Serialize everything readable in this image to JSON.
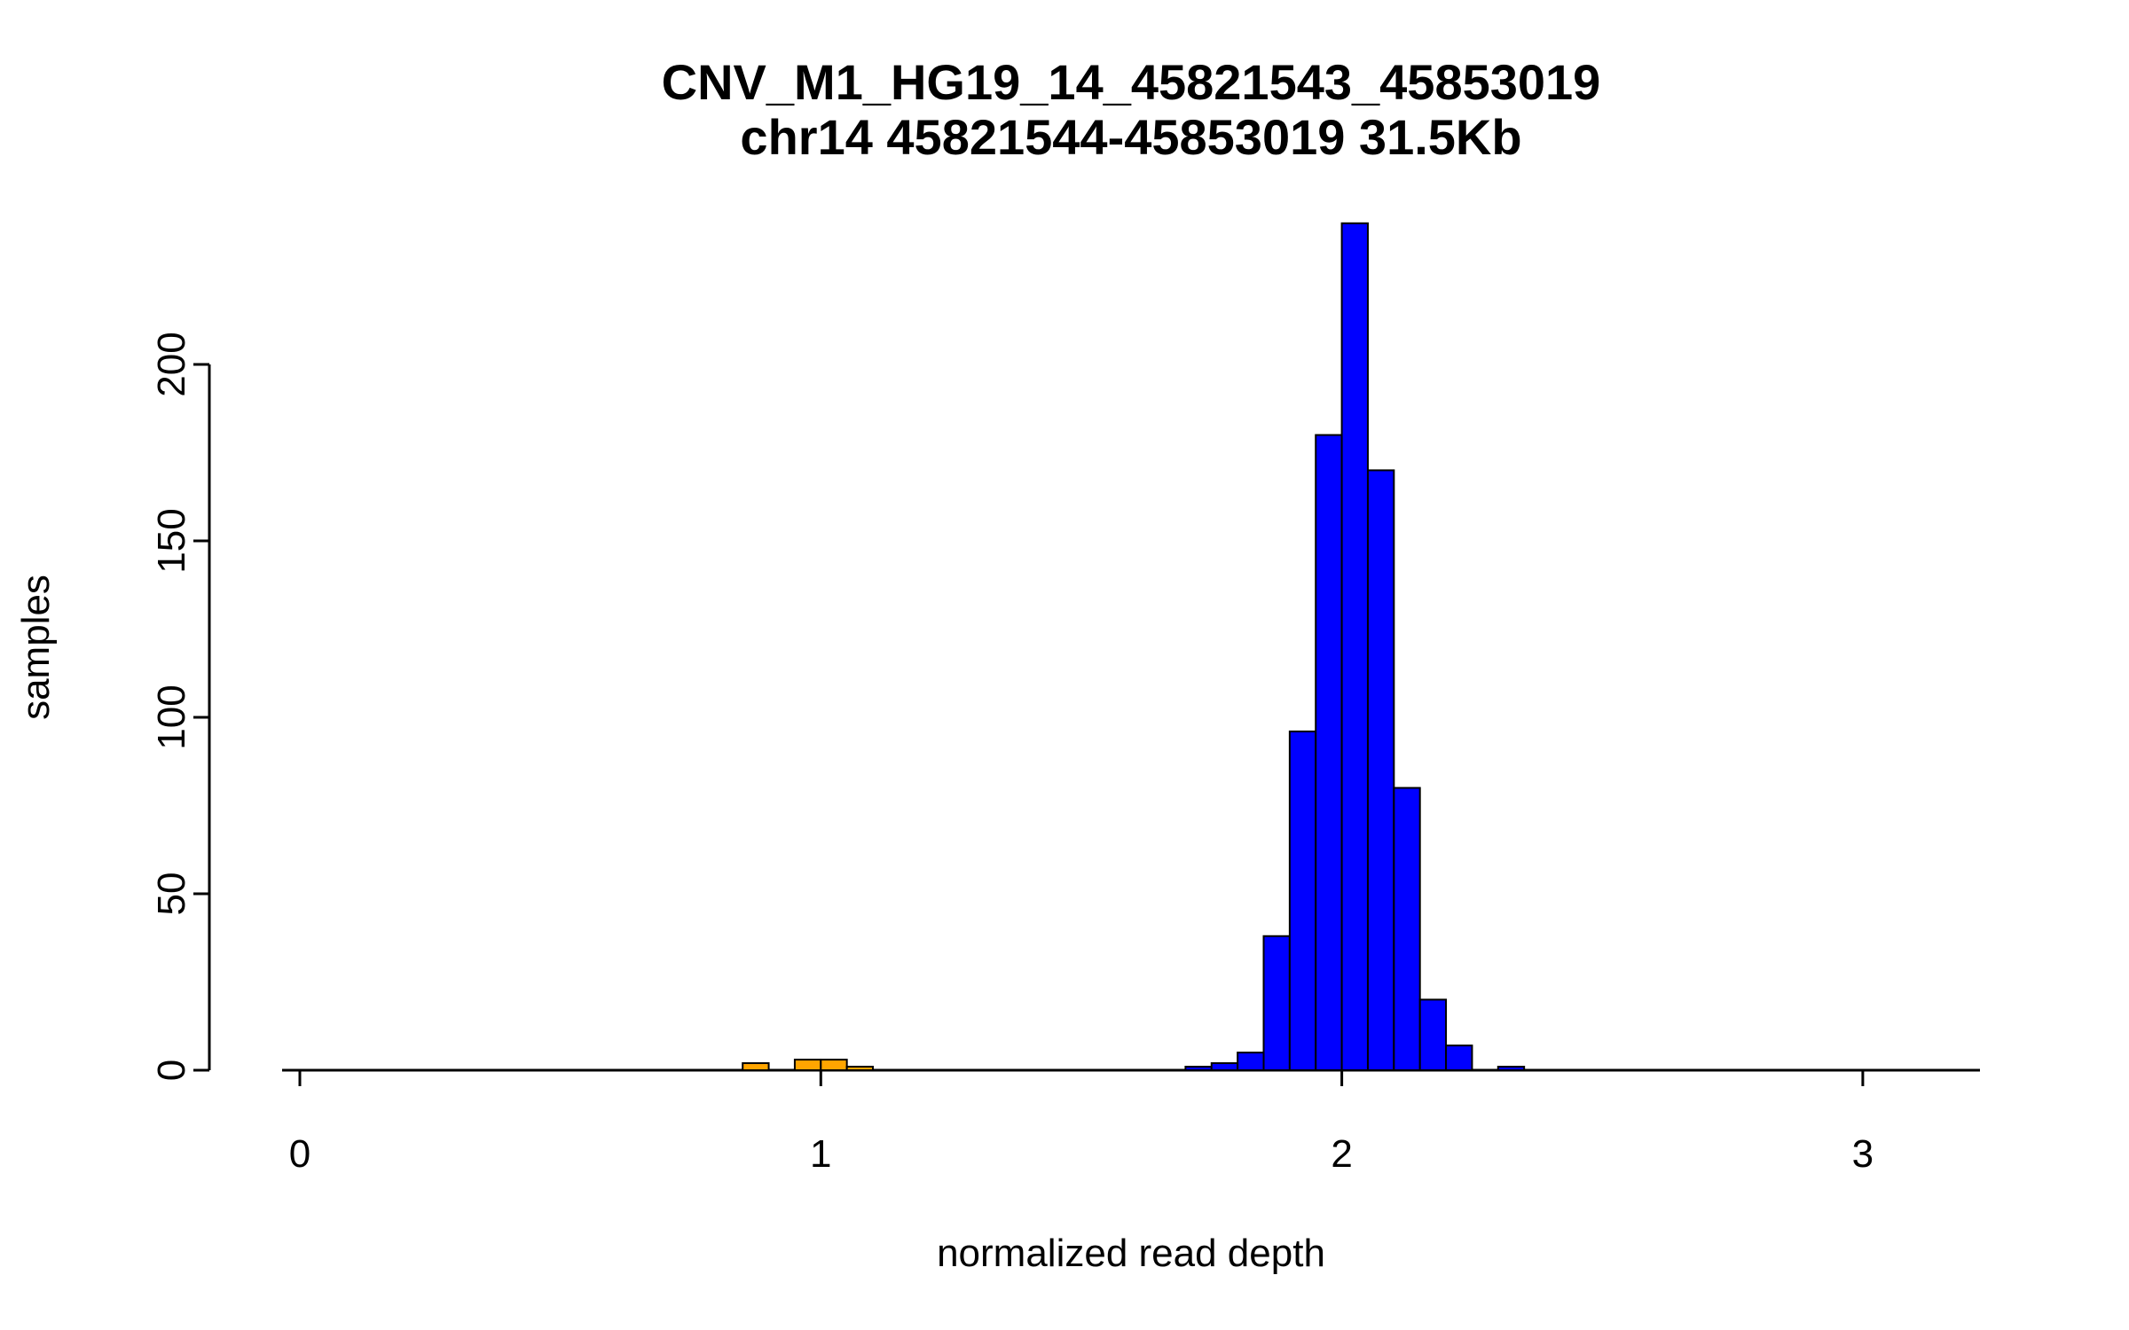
{
  "page": {
    "background": "#ffffff"
  },
  "chart_data": {
    "type": "bar",
    "chart_kind": "histogram",
    "title": "CNV_M1_HG19_14_45821543_45853019",
    "subtitle": "chr14 45821544-45853019 31.5Kb",
    "xlabel": "normalized read depth",
    "ylabel": "samples",
    "x_ticks": [
      0,
      1,
      2,
      3
    ],
    "y_ticks": [
      0,
      50,
      100,
      150,
      200
    ],
    "xlim": [
      -0.03,
      3.22
    ],
    "ylim": [
      0,
      240
    ],
    "bin_width": 0.05,
    "grid": false,
    "legend": false,
    "colors": {
      "main": "#0000ff",
      "highlight": "#ffa500",
      "bar_border": "#000000",
      "axis": "#000000",
      "text": "#000000"
    },
    "bars": [
      {
        "x0": 0.85,
        "x1": 0.9,
        "count": 2,
        "color": "highlight"
      },
      {
        "x0": 0.95,
        "x1": 1.0,
        "count": 3,
        "color": "highlight"
      },
      {
        "x0": 1.0,
        "x1": 1.05,
        "count": 3,
        "color": "highlight"
      },
      {
        "x0": 1.05,
        "x1": 1.1,
        "count": 1,
        "color": "highlight"
      },
      {
        "x0": 1.7,
        "x1": 1.75,
        "count": 1,
        "color": "main"
      },
      {
        "x0": 1.75,
        "x1": 1.8,
        "count": 2,
        "color": "main"
      },
      {
        "x0": 1.8,
        "x1": 1.85,
        "count": 5,
        "color": "main"
      },
      {
        "x0": 1.85,
        "x1": 1.9,
        "count": 38,
        "color": "main"
      },
      {
        "x0": 1.9,
        "x1": 1.95,
        "count": 96,
        "color": "main"
      },
      {
        "x0": 1.95,
        "x1": 2.0,
        "count": 180,
        "color": "main"
      },
      {
        "x0": 2.0,
        "x1": 2.05,
        "count": 240,
        "color": "main"
      },
      {
        "x0": 2.05,
        "x1": 2.1,
        "count": 170,
        "color": "main"
      },
      {
        "x0": 2.1,
        "x1": 2.15,
        "count": 80,
        "color": "main"
      },
      {
        "x0": 2.15,
        "x1": 2.2,
        "count": 20,
        "color": "main"
      },
      {
        "x0": 2.2,
        "x1": 2.25,
        "count": 7,
        "color": "main"
      },
      {
        "x0": 2.3,
        "x1": 2.35,
        "count": 1,
        "color": "main"
      }
    ]
  }
}
